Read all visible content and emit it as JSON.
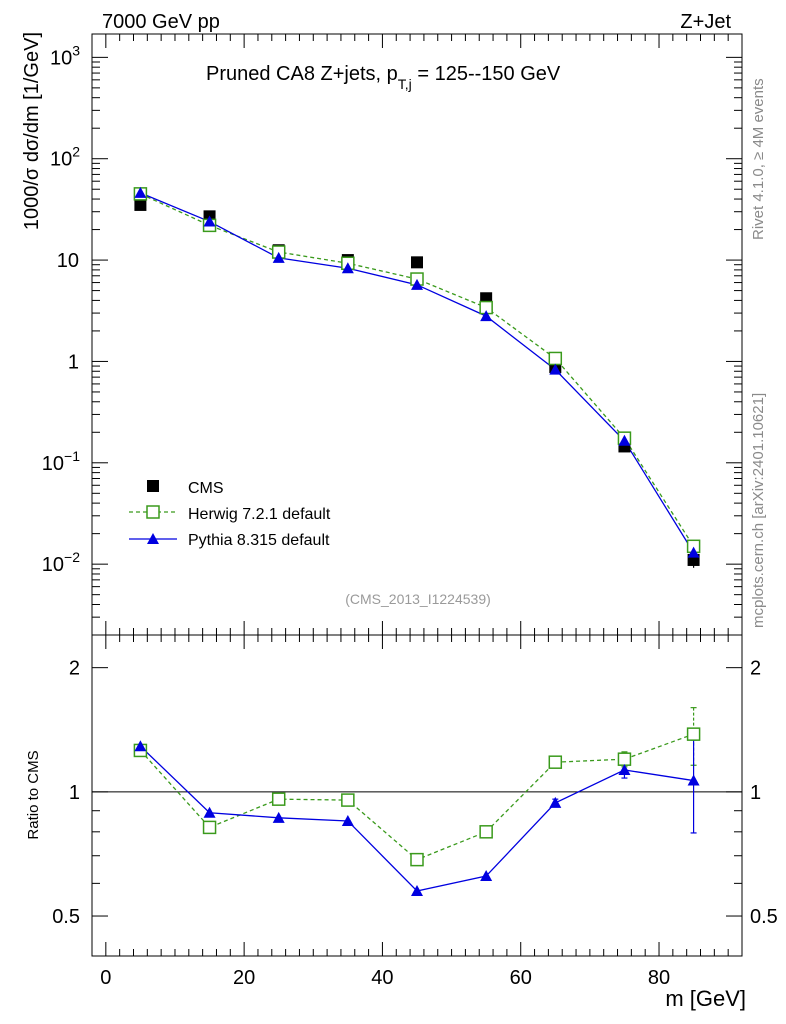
{
  "header": {
    "left": "7000 GeV pp",
    "right": "Z+Jet",
    "side_top": "Rivet 4.1.0, ≥ 4M events",
    "side_bottom": "mcplots.cern.ch [arXiv:2401.10621]"
  },
  "chart_data": {
    "type": "line",
    "title_main": "Pruned CA8 Z+jets, p",
    "title_sub": "T,j",
    "title_rest": " = 125--150 GeV",
    "analysis_id": "(CMS_2013_I1224539)",
    "xlabel": "m [GeV]",
    "ylabel": "1000/σ  dσ/dm [1/GeV]",
    "ratio_ylabel": "Ratio to CMS",
    "xlim": [
      -2,
      92
    ],
    "ylim": [
      0.002,
      1700
    ],
    "ratio_ylim": [
      0.4,
      2.4
    ],
    "yscale": "log",
    "ratio_yscale": "log",
    "x_ticks": [
      0,
      20,
      40,
      60,
      80
    ],
    "x_tick_labels": [
      "0",
      "20",
      "40",
      "60",
      "80"
    ],
    "y_ticks": [
      {
        "value": 1000,
        "base": "10",
        "exp": "3"
      },
      {
        "value": 100,
        "base": "10",
        "exp": "2"
      },
      {
        "value": 10,
        "base": "10",
        "exp": ""
      },
      {
        "value": 1,
        "base": "1",
        "exp": ""
      },
      {
        "value": 0.1,
        "base": "10",
        "exp": "−1"
      },
      {
        "value": 0.01,
        "base": "10",
        "exp": "−2"
      }
    ],
    "ratio_ticks": [
      {
        "value": 0.5,
        "label": "0.5"
      },
      {
        "value": 1,
        "label": "1"
      },
      {
        "value": 2,
        "label": "2"
      }
    ],
    "x": [
      5,
      15,
      25,
      35,
      45,
      55,
      65,
      75,
      85
    ],
    "series": [
      {
        "name": "CMS",
        "style": "data",
        "color": "#000000",
        "values": [
          35,
          27,
          12.5,
          10,
          9.5,
          4.2,
          0.88,
          0.145,
          0.011
        ],
        "errors": [
          0,
          0,
          0,
          0,
          0,
          0,
          0,
          0.01,
          0.0018
        ]
      },
      {
        "name": "Herwig 7.2.1 default",
        "style": "dashed-open-square",
        "color": "#3a9a1c",
        "values": [
          45,
          22,
          12,
          9.3,
          6.5,
          3.4,
          1.07,
          0.175,
          0.015
        ]
      },
      {
        "name": "Pythia 8.315 default",
        "style": "solid-triangle",
        "color": "#0000e0",
        "values": [
          46,
          24,
          10.5,
          8.3,
          5.7,
          2.8,
          0.83,
          0.165,
          0.013
        ]
      }
    ],
    "ratio_series": [
      {
        "name": "Herwig 7.2.1 default",
        "color": "#3a9a1c",
        "values": [
          1.26,
          0.82,
          0.96,
          0.955,
          0.685,
          0.8,
          1.18,
          1.2,
          1.38
        ],
        "errors": [
          0,
          0,
          0,
          0,
          0,
          0,
          0.02,
          0.05,
          0.22
        ]
      },
      {
        "name": "Pythia 8.315 default",
        "color": "#0000e0",
        "values": [
          1.29,
          0.89,
          0.865,
          0.85,
          0.575,
          0.625,
          0.94,
          1.13,
          1.065
        ],
        "errors": [
          0,
          0,
          0,
          0,
          0,
          0,
          0.02,
          0.05,
          0.27
        ]
      }
    ]
  }
}
